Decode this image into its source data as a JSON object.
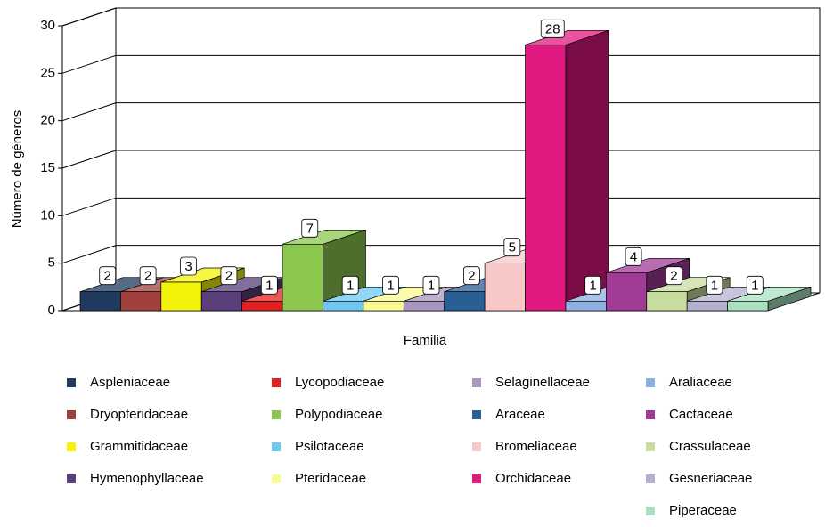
{
  "chart_data": {
    "type": "bar",
    "ylabel": "Número de géneros",
    "xlabel": "Familia",
    "categories": [
      "Aspleniaceae",
      "Dryopteridaceae",
      "Grammitidaceae",
      "Hymenophyllaceae",
      "Lycopodiaceae",
      "Polypodiaceae",
      "Psilotaceae",
      "Pteridaceae",
      "Selaginellaceae",
      "Araceae",
      "Bromeliaceae",
      "Orchidaceae",
      "Araliaceae",
      "Cactaceae",
      "Crassulaceae",
      "Gesneriaceae",
      "Piperaceae"
    ],
    "values": [
      2,
      2,
      3,
      2,
      1,
      7,
      1,
      1,
      1,
      2,
      5,
      28,
      1,
      4,
      2,
      1,
      1
    ],
    "colors": [
      "#1f3a5f",
      "#a0403d",
      "#f2f20a",
      "#5a3f7a",
      "#e02020",
      "#8cc850",
      "#6ec8f0",
      "#fafa96",
      "#a898c0",
      "#2a5f96",
      "#f8c8c8",
      "#e0187f",
      "#8cb0e0",
      "#a03c96",
      "#c8dca0",
      "#b4b0d0",
      "#a8e0c0"
    ],
    "ylim": [
      0,
      30
    ],
    "yticks": [
      0,
      5,
      10,
      15,
      20,
      25,
      30
    ],
    "grid": true
  }
}
